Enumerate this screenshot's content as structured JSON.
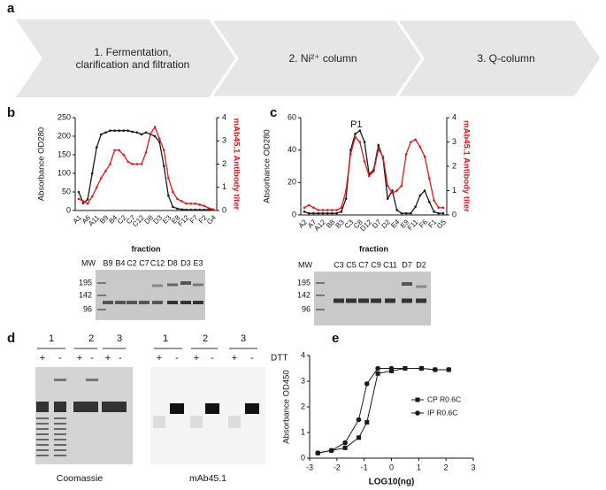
{
  "panel_labels": [
    "a",
    "b",
    "c",
    "d",
    "e"
  ],
  "flow": {
    "steps": [
      "1. Fermentation, clarification and filtration",
      "2. Ni²⁺ column",
      "3. Q-column"
    ]
  },
  "chart_data": [
    {
      "type": "line",
      "ylabel": "Absorbance OD280",
      "y2label": "mAb45.1 Antibody titer",
      "xlabel": "fraction",
      "categories": [
        "A1",
        null,
        "A6",
        null,
        "A11",
        null,
        "B9",
        null,
        "B4",
        null,
        "C2",
        null,
        "C7",
        null,
        "C12",
        null,
        "D8",
        null,
        "D3",
        null,
        "E3",
        null,
        "E8",
        null,
        "F12",
        null,
        "F7",
        null,
        "F2",
        null,
        "G4"
      ],
      "ylim": [
        0,
        250
      ],
      "yticks": [
        0,
        50,
        100,
        150,
        200,
        250
      ],
      "y2lim": [
        0,
        4
      ],
      "y2ticks": [
        0,
        1,
        2,
        3,
        4
      ],
      "series": [
        {
          "color": "#1a1a1a",
          "values": [
            50,
            20,
            30,
            100,
            170,
            205,
            210,
            215,
            215,
            215,
            215,
            215,
            212,
            210,
            205,
            210,
            205,
            200,
            185,
            120,
            40,
            10,
            5,
            3,
            2,
            2,
            2,
            2,
            2,
            2,
            2
          ]
        },
        {
          "color": "#e8141a",
          "axis": "y2",
          "values": [
            0.5,
            0.4,
            0.3,
            0.6,
            1.0,
            1.4,
            1.7,
            2.0,
            2.6,
            2.6,
            2.4,
            2.1,
            2.0,
            2.0,
            2.0,
            2.5,
            3.3,
            3.6,
            3.1,
            2.6,
            1.4,
            0.8,
            0.5,
            0.4,
            0.3,
            0.3,
            0.3,
            0.25,
            0.2,
            0.1,
            0.05
          ]
        }
      ]
    },
    {
      "type": "line",
      "ylabel": "Absorbance OD280",
      "y2label": "mAb45.1 Antibody titer",
      "xlabel": "fraction",
      "annotation": "P1",
      "categories": [
        "A2",
        null,
        "A7",
        null,
        "A12",
        null,
        "B8",
        null,
        "B3",
        null,
        "C3",
        null,
        "C8",
        null,
        "D12",
        null,
        "D7",
        null,
        "D2",
        null,
        "E4",
        null,
        "E9",
        null,
        "F11",
        null,
        "F6",
        null,
        "F1",
        null,
        "G5"
      ],
      "ylim": [
        0,
        60
      ],
      "yticks": [
        0,
        20,
        40,
        60
      ],
      "y2lim": [
        0,
        4
      ],
      "y2ticks": [
        0,
        1,
        2,
        3,
        4
      ],
      "series": [
        {
          "color": "#1a1a1a",
          "values": [
            2,
            1,
            1,
            1,
            1,
            1,
            1,
            1,
            2,
            10,
            40,
            50,
            52,
            45,
            25,
            28,
            43,
            35,
            10,
            15,
            3,
            1,
            1,
            1,
            5,
            12,
            15,
            8,
            2,
            1,
            1
          ]
        },
        {
          "color": "#e8141a",
          "axis": "y2",
          "values": [
            0.3,
            0.4,
            0.3,
            0.2,
            0.2,
            0.2,
            0.2,
            0.2,
            0.3,
            1.0,
            2.5,
            3.2,
            3.0,
            2.2,
            1.6,
            1.8,
            2.7,
            2.4,
            1.2,
            0.9,
            1.0,
            1.2,
            2.5,
            3.0,
            3.1,
            2.8,
            2.4,
            1.5,
            0.6,
            0.3,
            0.3
          ]
        }
      ]
    },
    {
      "type": "line",
      "ylabel": "Absorbance OD450",
      "xlabel": "LOG10(ng)",
      "legend": "right",
      "x": [
        -2.7,
        -2.2,
        -1.7,
        -1.2,
        -0.9,
        -0.5,
        0,
        0.5,
        1.1,
        1.6,
        2.1
      ],
      "xlim": [
        -3,
        3
      ],
      "xticks": [
        -3,
        -2,
        -1,
        0,
        1,
        2,
        3
      ],
      "ylim": [
        0,
        4
      ],
      "yticks": [
        0,
        1,
        2,
        3,
        4
      ],
      "series": [
        {
          "name": "CP R0.6C",
          "color": "#1a1a1a",
          "marker": "square",
          "values": [
            0.2,
            0.3,
            0.4,
            0.8,
            1.4,
            3.3,
            3.4,
            3.5,
            3.5,
            3.45,
            3.45
          ]
        },
        {
          "name": "IP R0.6C",
          "color": "#1a1a1a",
          "marker": "circle",
          "values": [
            0.2,
            0.3,
            0.6,
            1.5,
            2.9,
            3.5,
            3.5,
            3.5,
            3.5,
            3.45,
            3.45
          ]
        }
      ]
    }
  ],
  "gel_b": {
    "mw": "MW",
    "lanes": [
      "B9",
      "B4",
      "C2",
      "C7",
      "C12",
      "D8",
      "D3",
      "E3"
    ],
    "markers": [
      "195",
      "142",
      "96"
    ]
  },
  "gel_c": {
    "mw": "MW",
    "lanes": [
      "C3",
      "C5",
      "C7",
      "C9",
      "C11",
      "D7",
      "D2"
    ],
    "markers": [
      "195",
      "142",
      "96"
    ]
  },
  "panel_d": {
    "gels": [
      {
        "groups": [
          "1",
          "2",
          "3"
        ],
        "signs": [
          "+",
          "-",
          "+",
          "-",
          "+",
          "-"
        ],
        "caption": "Coomassie"
      },
      {
        "groups": [
          "1",
          "2",
          "3"
        ],
        "signs": [
          "+",
          "-",
          "+",
          "-",
          "+",
          "-"
        ],
        "caption": "mAb45.1",
        "condition": "DTT"
      }
    ]
  }
}
